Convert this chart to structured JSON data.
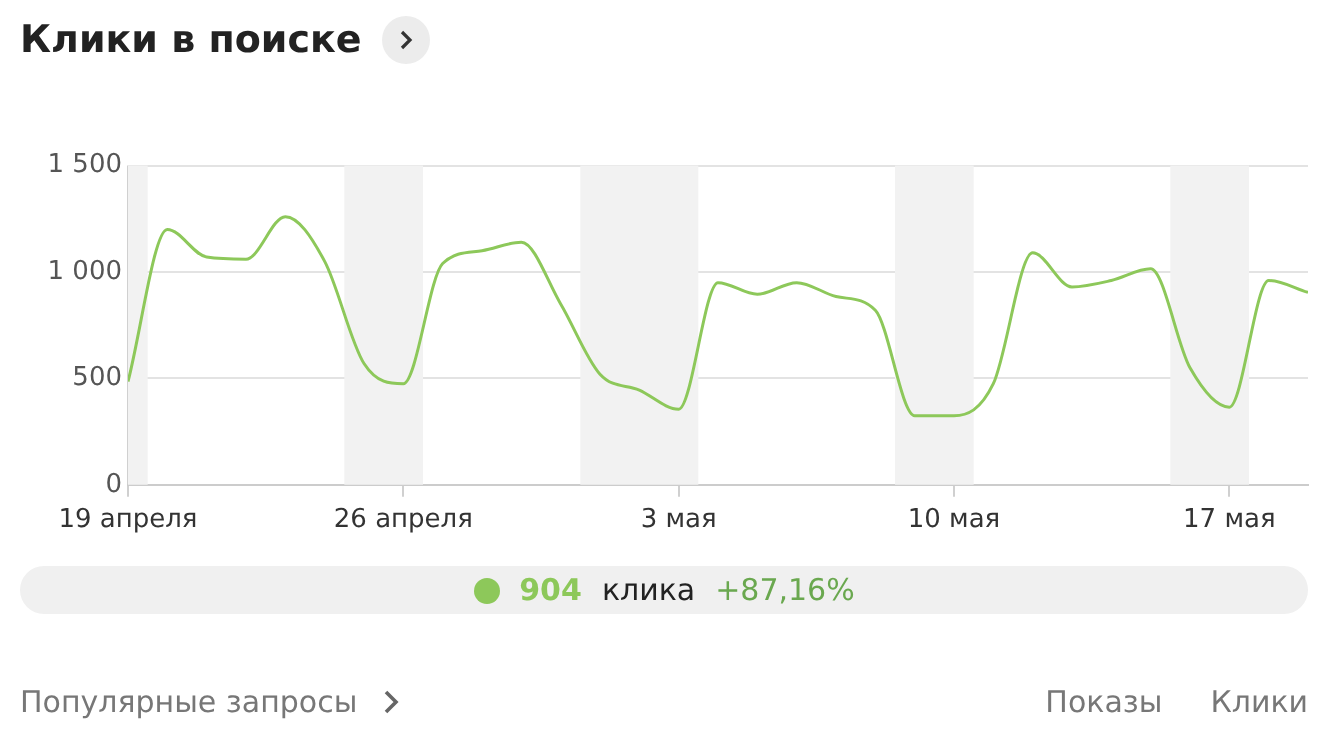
{
  "chart_data": {
    "type": "line",
    "title": "Клики в поиске",
    "x": [
      "--04-19",
      "--04-20",
      "--04-21",
      "--04-22",
      "--04-23",
      "--04-24",
      "--04-25",
      "--04-26",
      "--04-27",
      "--04-28",
      "--04-29",
      "--04-30",
      "--05-01",
      "--05-02",
      "--05-03",
      "--05-04",
      "--05-05",
      "--05-06",
      "--05-07",
      "--05-08",
      "--05-09",
      "--05-10",
      "--05-11",
      "--05-12",
      "--05-13",
      "--05-14",
      "--05-15",
      "--05-16",
      "--05-17",
      "--05-18",
      "--05-19"
    ],
    "series": [
      {
        "color": "#8dc85a",
        "values": [
          485,
          1200,
          1070,
          1060,
          1260,
          1050,
          570,
          475,
          1040,
          1100,
          1140,
          850,
          520,
          445,
          355,
          950,
          895,
          950,
          885,
          820,
          325,
          325,
          475,
          1090,
          930,
          960,
          1015,
          550,
          365,
          960,
          904
        ]
      }
    ],
    "xlim": [
      "--04-19",
      "--05-19"
    ],
    "xticks": [
      {
        "value": "--04-19",
        "label": "19 апреля"
      },
      {
        "value": "--04-26",
        "label": "26 апреля"
      },
      {
        "value": "--05-03",
        "label": "3 мая"
      },
      {
        "value": "--05-10",
        "label": "10 мая"
      },
      {
        "value": "--05-17",
        "label": "17 мая"
      }
    ],
    "ylim": [
      0,
      1500
    ],
    "yticks": [
      0,
      500,
      {
        "value": 1000,
        "label": "1 000"
      },
      {
        "value": 1500,
        "label": "1 500"
      }
    ],
    "bands": [
      {
        "axis": "x",
        "from": "--04-19",
        "to": "--04-19T12:00",
        "color": "#f2f2f2"
      },
      {
        "axis": "x",
        "from": "--04-24T12:00",
        "to": "--04-26T12:00",
        "color": "#f2f2f2"
      },
      {
        "axis": "x",
        "from": "--04-30T12:00",
        "to": "--05-03T12:00",
        "color": "#f2f2f2"
      },
      {
        "axis": "x",
        "from": "--05-08T12:00",
        "to": "--05-10T12:00",
        "color": "#f2f2f2"
      },
      {
        "axis": "x",
        "from": "--05-15T12:00",
        "to": "--05-17T12:00",
        "color": "#f2f2f2"
      }
    ],
    "grid": true,
    "marker": "none",
    "line_style": "solid",
    "annotations": [
      "904",
      "клика",
      "+87,16%",
      "Популярные запросы",
      "Показы",
      "Клики"
    ]
  }
}
